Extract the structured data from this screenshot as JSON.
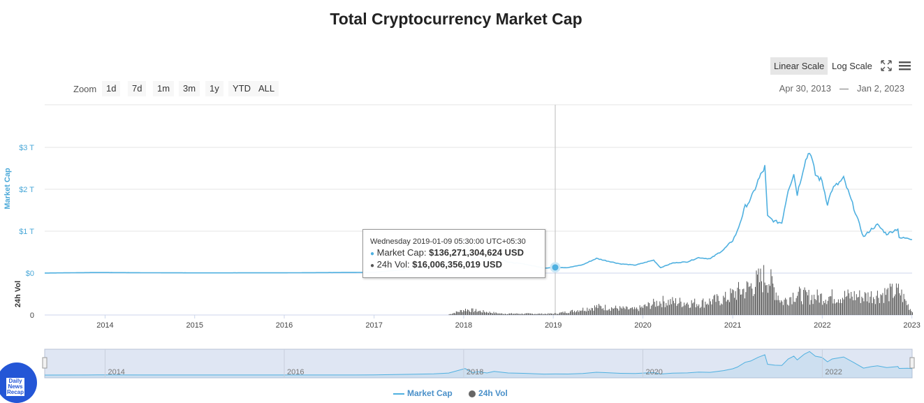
{
  "title": "Total Cryptocurrency Market Cap",
  "toolbar": {
    "linear_scale": "Linear Scale",
    "log_scale": "Log Scale",
    "fullscreen_icon": "fullscreen-icon",
    "menu_icon": "menu-icon"
  },
  "zoom": {
    "label": "Zoom",
    "buttons": [
      "1d",
      "7d",
      "1m",
      "3m",
      "1y",
      "YTD",
      "ALL"
    ]
  },
  "date_range": {
    "from": "Apr 30, 2013",
    "separator": "—",
    "to": "Jan 2, 2023"
  },
  "tooltip": {
    "header": "Wednesday 2019-01-09 05:30:00 UTC+05:30",
    "market_cap_label": "Market Cap:",
    "market_cap_value": "$136,271,304,624 USD",
    "volume_label": "24h Vol:",
    "volume_value": "$16,006,356,019 USD"
  },
  "legend": {
    "market_cap": "Market Cap",
    "volume": "24h Vol"
  },
  "logo": {
    "text": "Daily News Recap"
  },
  "colors": {
    "market_cap": "#4fb0e0",
    "volume": "#555555",
    "accent_label": "#4aa8d8"
  },
  "chart_data": {
    "type": "line",
    "title": "Total Cryptocurrency Market Cap",
    "x_ticks": [
      "2014",
      "2015",
      "2016",
      "2017",
      "2018",
      "2019",
      "2020",
      "2021",
      "2022",
      "2023"
    ],
    "y_axis_market_cap": {
      "label": "Market Cap",
      "ticks": [
        "$0",
        "$1 T",
        "$2 T",
        "$3 T"
      ],
      "range_trillions": [
        0,
        3.5
      ]
    },
    "y_axis_volume": {
      "label": "24h Vol",
      "ticks": [
        "0"
      ]
    },
    "navigator_ticks": [
      "2014",
      "2016",
      "2018",
      "2020",
      "2022"
    ],
    "series": [
      {
        "name": "Market Cap",
        "unit": "trillion USD",
        "points": [
          [
            "2013-04-30",
            0.0015
          ],
          [
            "2013-12-01",
            0.014
          ],
          [
            "2014-06-01",
            0.009
          ],
          [
            "2015-01-01",
            0.005
          ],
          [
            "2016-01-01",
            0.007
          ],
          [
            "2017-01-01",
            0.018
          ],
          [
            "2017-06-01",
            0.1
          ],
          [
            "2017-09-01",
            0.15
          ],
          [
            "2017-11-01",
            0.25
          ],
          [
            "2018-01-07",
            0.81
          ],
          [
            "2018-02-06",
            0.3
          ],
          [
            "2018-03-01",
            0.43
          ],
          [
            "2018-04-06",
            0.26
          ],
          [
            "2018-05-05",
            0.45
          ],
          [
            "2018-07-01",
            0.26
          ],
          [
            "2018-09-01",
            0.22
          ],
          [
            "2018-11-25",
            0.12
          ],
          [
            "2019-01-09",
            0.136
          ],
          [
            "2019-03-01",
            0.13
          ],
          [
            "2019-05-01",
            0.2
          ],
          [
            "2019-06-26",
            0.35
          ],
          [
            "2019-08-01",
            0.3
          ],
          [
            "2019-10-01",
            0.22
          ],
          [
            "2019-12-01",
            0.19
          ],
          [
            "2020-02-14",
            0.31
          ],
          [
            "2020-03-13",
            0.13
          ],
          [
            "2020-05-01",
            0.24
          ],
          [
            "2020-07-01",
            0.27
          ],
          [
            "2020-08-15",
            0.37
          ],
          [
            "2020-10-01",
            0.34
          ],
          [
            "2020-11-25",
            0.56
          ],
          [
            "2021-01-01",
            0.78
          ],
          [
            "2021-01-20",
            1.0
          ],
          [
            "2021-02-21",
            1.59
          ],
          [
            "2021-03-15",
            1.75
          ],
          [
            "2021-04-14",
            2.2
          ],
          [
            "2021-05-12",
            2.53
          ],
          [
            "2021-05-23",
            1.35
          ],
          [
            "2021-06-22",
            1.23
          ],
          [
            "2021-07-20",
            1.2
          ],
          [
            "2021-08-15",
            2.0
          ],
          [
            "2021-09-07",
            2.36
          ],
          [
            "2021-09-21",
            1.89
          ],
          [
            "2021-10-20",
            2.61
          ],
          [
            "2021-11-10",
            2.93
          ],
          [
            "2021-12-04",
            2.35
          ],
          [
            "2021-12-31",
            2.2
          ],
          [
            "2022-01-22",
            1.65
          ],
          [
            "2022-02-10",
            2.0
          ],
          [
            "2022-03-29",
            2.25
          ],
          [
            "2022-05-10",
            1.55
          ],
          [
            "2022-06-18",
            0.86
          ],
          [
            "2022-07-20",
            1.05
          ],
          [
            "2022-08-14",
            1.15
          ],
          [
            "2022-09-20",
            0.93
          ],
          [
            "2022-11-05",
            1.06
          ],
          [
            "2022-11-10",
            0.83
          ],
          [
            "2022-12-15",
            0.85
          ],
          [
            "2023-01-02",
            0.8
          ]
        ]
      },
      {
        "name": "24h Vol",
        "unit": "billion USD",
        "points": [
          [
            "2017-11-01",
            7
          ],
          [
            "2018-01-07",
            60
          ],
          [
            "2018-06-01",
            15
          ],
          [
            "2018-12-01",
            13
          ],
          [
            "2019-01-09",
            16
          ],
          [
            "2019-03-01",
            35
          ],
          [
            "2019-06-26",
            90
          ],
          [
            "2019-12-01",
            60
          ],
          [
            "2020-03-13",
            150
          ],
          [
            "2020-08-15",
            130
          ],
          [
            "2020-12-01",
            180
          ],
          [
            "2021-01-15",
            250
          ],
          [
            "2021-02-22",
            280
          ],
          [
            "2021-05-19",
            430
          ],
          [
            "2021-07-20",
            140
          ],
          [
            "2021-09-07",
            230
          ],
          [
            "2021-11-10",
            200
          ],
          [
            "2022-01-22",
            200
          ],
          [
            "2022-05-10",
            210
          ],
          [
            "2022-06-18",
            200
          ],
          [
            "2022-11-10",
            260
          ],
          [
            "2023-01-02",
            30
          ]
        ]
      }
    ]
  }
}
